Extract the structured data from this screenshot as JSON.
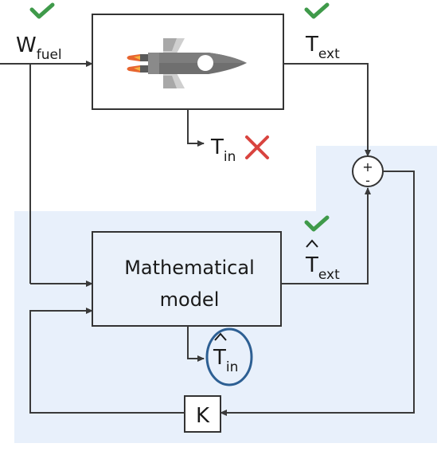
{
  "inputs": {
    "fuel": {
      "base": "W",
      "sub": "fuel"
    }
  },
  "outputs": {
    "t_ext": {
      "base": "T",
      "sub": "ext"
    },
    "t_in": {
      "base": "T",
      "sub": "in"
    },
    "t_ext_hat": {
      "base": "T",
      "sub": "ext"
    },
    "t_in_hat": {
      "base": "T",
      "sub": "in"
    }
  },
  "model": {
    "line1": "Mathematical",
    "line2": "model"
  },
  "summing": {
    "plus": "+",
    "minus": "-"
  },
  "gain": {
    "label": "K"
  },
  "colors": {
    "check": "#3f9a4a",
    "cross": "#d9443f",
    "region": "#e8f0fb",
    "circle": "#2d5f93"
  },
  "icons": {
    "plant": "rocket-icon",
    "valid": "checkmark-icon",
    "invalid": "cross-icon"
  }
}
